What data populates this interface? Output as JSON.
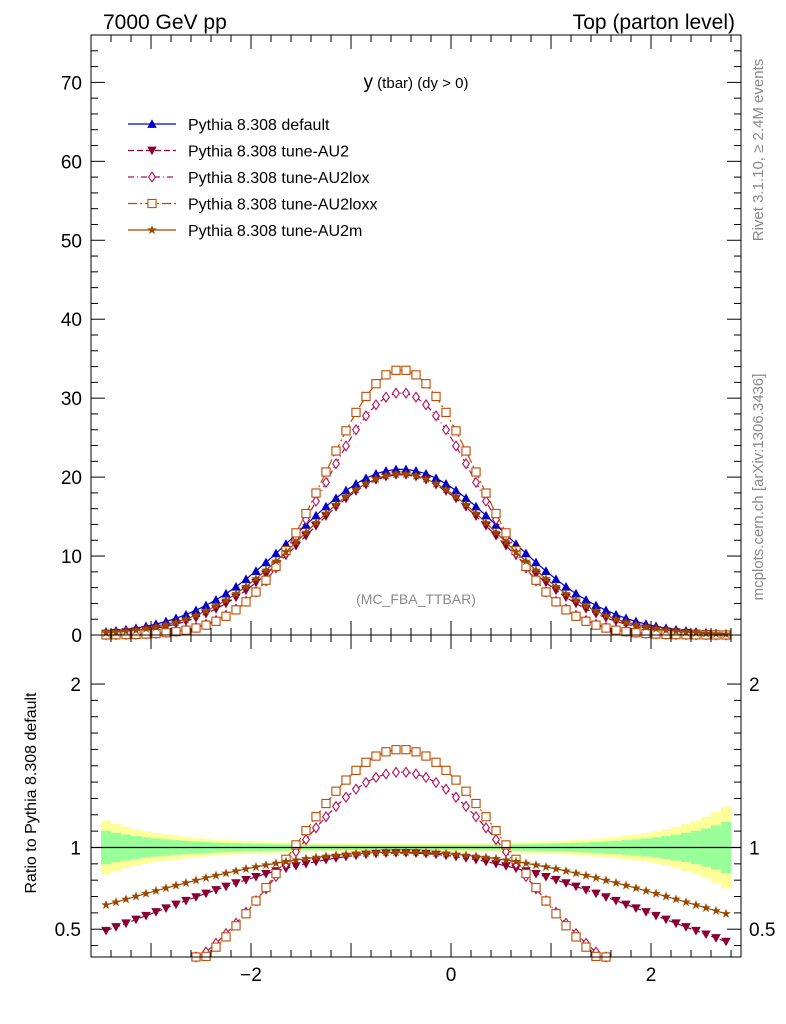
{
  "header": {
    "left": "7000 GeV pp",
    "right": "Top (parton level)"
  },
  "side_labels": {
    "rivet": "Rivet 3.1.10, ≥ 2.4M events",
    "mcplots": "mcplots.cern.ch [arXiv:1306.3436]"
  },
  "chart_data": [
    {
      "type": "line",
      "title_main": "y",
      "title_rest": " (tbar) (dy > 0)",
      "watermark": "(MC_FBA_TTBAR)",
      "xlim": [
        -3.6,
        2.9
      ],
      "ylim": [
        0,
        76
      ],
      "x_ticks": [
        -2,
        0,
        2
      ],
      "y_ticks": [
        0,
        10,
        20,
        30,
        40,
        50,
        60,
        70
      ],
      "legend": {
        "placement": "top-left"
      },
      "colors": {
        "default": "#0000cc",
        "au2": "#8b0030",
        "au2lox": "#b0105a",
        "au2loxx": "#c04a00",
        "au2m": "#9a4a00"
      },
      "series": [
        {
          "name": "Pythia 8.308 default",
          "key": "default",
          "marker": "triangle-up",
          "dash": "solid",
          "centre": -0.5,
          "sigma": 1.05,
          "amplitude": 21.0
        },
        {
          "name": "Pythia 8.308 tune-AU2",
          "key": "au2",
          "marker": "triangle-down",
          "dash": "dash",
          "centre": -0.5,
          "sigma": 0.97,
          "amplitude": 20.3
        },
        {
          "name": "Pythia 8.308 tune-AU2lox",
          "key": "au2lox",
          "marker": "diamond",
          "dash": "dashdot",
          "centre": -0.5,
          "sigma": 0.78,
          "amplitude": 30.7
        },
        {
          "name": "Pythia 8.308 tune-AU2loxx",
          "key": "au2loxx",
          "marker": "square",
          "dash": "longdashdot",
          "centre": -0.5,
          "sigma": 0.76,
          "amplitude": 33.6
        },
        {
          "name": "Pythia 8.308 tune-AU2m",
          "key": "au2m",
          "marker": "star",
          "dash": "solid",
          "centre": -0.5,
          "sigma": 1.0,
          "amplitude": 20.4
        }
      ]
    },
    {
      "type": "line",
      "ylabel": "Ratio to Pythia 8.308 default",
      "xlim": [
        -3.6,
        2.9
      ],
      "ylim": [
        0.33,
        2.3
      ],
      "x_ticks": [
        -2,
        0,
        2
      ],
      "x_tick_labels": [
        "−2",
        "0",
        "2"
      ],
      "y_ticks": [
        0.5,
        1,
        2
      ],
      "y_tick_labels": [
        "0.5",
        "1",
        "2"
      ],
      "reference": 1,
      "band_colors": {
        "inner": "#99ff99",
        "outer": "#ffff99"
      }
    }
  ]
}
